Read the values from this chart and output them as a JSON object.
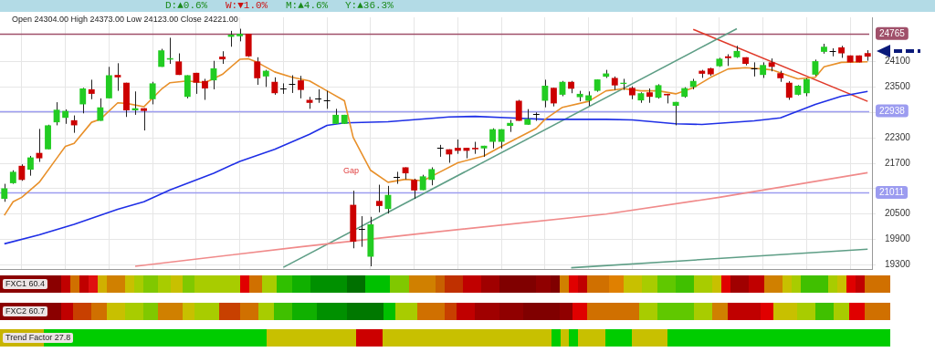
{
  "chart_data": {
    "type": "candlestick",
    "subtitle": "Open 24304.00 High 24373.00 Low 24123.00 Close 24221.00",
    "annotations": [
      "D:▲0.6%",
      "W:▼1.0%",
      "M:▲4.6%",
      "Y:▲36.3%",
      "Gap",
      "FXC1 60.4",
      "FXC2 60.7",
      "Trend Factor 27.8"
    ],
    "categories": [
      null,
      null,
      null,
      null,
      null,
      null,
      null,
      null,
      null,
      null,
      null,
      null,
      null,
      null,
      null,
      null,
      null,
      null,
      null,
      null,
      null,
      null,
      null,
      null,
      null,
      null,
      null,
      null,
      null,
      null,
      null,
      null,
      null,
      null,
      null,
      null,
      null,
      null,
      null,
      null,
      null,
      null,
      null,
      null,
      null,
      null,
      null,
      null,
      null,
      null,
      null,
      null,
      null,
      null,
      null,
      null,
      null,
      null,
      null,
      null,
      null,
      null,
      null,
      null,
      null,
      null,
      null,
      null,
      null,
      null,
      null,
      null,
      null,
      null,
      null,
      null,
      null,
      null,
      null,
      null,
      null,
      null,
      null,
      null,
      null,
      null,
      null,
      null,
      null,
      null,
      null,
      null,
      null,
      null,
      null,
      null,
      null,
      null,
      null,
      null
    ],
    "ohlc": [
      [
        20860,
        21214,
        20789,
        21108
      ],
      [
        21229,
        21533,
        21214,
        21498
      ],
      [
        21640,
        21675,
        21285,
        21307
      ],
      [
        21548,
        21874,
        21406,
        21838
      ],
      [
        21945,
        22512,
        21732,
        21817
      ],
      [
        22030,
        22611,
        22030,
        22597
      ],
      [
        22668,
        23143,
        22597,
        22966
      ],
      [
        22774,
        22973,
        22632,
        22937
      ],
      [
        22717,
        22831,
        22420,
        22597
      ],
      [
        23093,
        23483,
        22880,
        23469
      ],
      [
        23448,
        23675,
        23214,
        23341
      ],
      [
        22703,
        23235,
        22703,
        23022
      ],
      [
        23235,
        23979,
        23235,
        23781
      ],
      [
        23788,
        24065,
        23412,
        23731
      ],
      [
        23604,
        23604,
        22795,
        22951
      ],
      [
        22951,
        23398,
        22845,
        23001
      ],
      [
        23001,
        23001,
        22476,
        22937
      ],
      [
        23214,
        23625,
        23093,
        23589
      ],
      [
        23979,
        24405,
        23979,
        24369
      ],
      [
        24150,
        24667,
        24050,
        24185
      ],
      [
        24107,
        24298,
        23788,
        23788
      ],
      [
        23270,
        23781,
        23235,
        23781
      ],
      [
        23838,
        23838,
        23341,
        23604
      ],
      [
        23646,
        23696,
        23199,
        23469
      ],
      [
        23660,
        24121,
        23448,
        23944
      ],
      [
        24221,
        24348,
        24050,
        24157
      ],
      [
        24689,
        24830,
        24455,
        24739
      ],
      [
        24703,
        24880,
        24582,
        24760
      ],
      [
        24760,
        24760,
        24213,
        24228
      ],
      [
        24107,
        24206,
        23554,
        23710
      ],
      [
        23752,
        23908,
        23504,
        23887
      ],
      [
        23625,
        23731,
        23320,
        23356
      ],
      [
        23469,
        23589,
        23341,
        23469
      ],
      [
        23572,
        23781,
        23362,
        23572
      ],
      [
        23660,
        23767,
        23235,
        23433
      ],
      [
        23199,
        23270,
        22987,
        23128
      ],
      [
        23224,
        23448,
        23128,
        23224
      ],
      [
        23188,
        23412,
        22987,
        23188
      ],
      [
        22632,
        22987,
        22632,
        22845
      ],
      [
        22632,
        22845,
        22632,
        22845
      ],
      [
        20718,
        21051,
        19690,
        19846
      ],
      [
        20143,
        20449,
        19725,
        20143
      ],
      [
        19491,
        20434,
        19264,
        20257
      ],
      [
        20810,
        21193,
        20541,
        20690
      ],
      [
        20619,
        21165,
        20513,
        20952
      ],
      [
        21388,
        21498,
        21214,
        21388
      ],
      [
        21604,
        21604,
        21321,
        21462
      ],
      [
        21307,
        21335,
        20860,
        21058
      ],
      [
        21065,
        21427,
        21065,
        21391
      ],
      [
        21307,
        21604,
        21179,
        21562
      ],
      [
        22062,
        22135,
        21853,
        22062
      ],
      [
        22030,
        22030,
        21711,
        21909
      ],
      [
        22065,
        22263,
        21923,
        21994
      ],
      [
        22065,
        22065,
        21817,
        21994
      ],
      [
        22065,
        22207,
        21923,
        22030
      ],
      [
        22051,
        22114,
        21853,
        22114
      ],
      [
        22207,
        22526,
        22051,
        22505
      ],
      [
        22207,
        22505,
        22051,
        22505
      ],
      [
        22583,
        22724,
        22441,
        22654
      ],
      [
        23178,
        23199,
        22703,
        22703
      ],
      [
        22611,
        22980,
        22611,
        22746
      ],
      [
        22862,
        22902,
        22703,
        22862
      ],
      [
        23178,
        23675,
        23022,
        23533
      ],
      [
        23483,
        23483,
        23044,
        23115
      ],
      [
        23320,
        23646,
        23285,
        23625
      ],
      [
        23625,
        23646,
        23356,
        23462
      ],
      [
        23263,
        23412,
        23164,
        23341
      ],
      [
        23178,
        23398,
        23058,
        23306
      ],
      [
        23412,
        23682,
        23391,
        23682
      ],
      [
        23746,
        23908,
        23717,
        23823
      ],
      [
        23717,
        23752,
        23434,
        23540
      ],
      [
        23575,
        23696,
        23434,
        23604
      ],
      [
        23483,
        23519,
        23214,
        23306
      ],
      [
        23186,
        23377,
        23129,
        23356
      ],
      [
        23377,
        23469,
        23129,
        23271
      ],
      [
        23249,
        23568,
        23228,
        23546
      ],
      [
        23341,
        23341,
        23115,
        23306
      ],
      [
        23058,
        23150,
        22597,
        23150
      ],
      [
        23271,
        23497,
        23249,
        23476
      ],
      [
        23504,
        23696,
        23448,
        23646
      ],
      [
        23887,
        23908,
        23717,
        23816
      ],
      [
        23944,
        23958,
        23767,
        23802
      ],
      [
        23994,
        24192,
        23979,
        24171
      ],
      [
        24228,
        24277,
        24000,
        24185
      ],
      [
        24206,
        24476,
        24192,
        24355
      ],
      [
        24206,
        24206,
        24015,
        24050
      ],
      [
        23932,
        24086,
        23752,
        23932
      ],
      [
        23788,
        24086,
        23717,
        24022
      ],
      [
        24086,
        24178,
        23873,
        23979
      ],
      [
        23830,
        23887,
        23625,
        23710
      ],
      [
        23604,
        23639,
        23199,
        23249
      ],
      [
        23320,
        23547,
        23306,
        23533
      ],
      [
        23356,
        23710,
        23285,
        23689
      ],
      [
        23795,
        24150,
        23767,
        24114
      ],
      [
        24334,
        24525,
        24292,
        24455
      ],
      [
        24358,
        24419,
        24228,
        24358
      ],
      [
        24440,
        24476,
        24192,
        24298
      ],
      [
        24249,
        24249,
        24086,
        24086
      ],
      [
        24249,
        24249,
        24086,
        24086
      ],
      [
        24304,
        24373,
        24123,
        24221
      ]
    ],
    "colors": [
      "#22cc22",
      "#22cc22",
      "#cc0000",
      "#22cc22",
      "#cc0000",
      "#22cc22",
      "#22cc22",
      "#22cc22",
      "#cc0000",
      "#22cc22",
      "#cc0000",
      "#22cc22",
      "#22cc22",
      "#cc0000",
      "#cc0000",
      "#22cc22",
      "#cc0000",
      "#22cc22",
      "#22cc22",
      "#22cc22",
      "#cc0000",
      "#22cc22",
      "#cc0000",
      "#cc0000",
      "#22cc22",
      "#cc0000",
      "#22cc22",
      "#22cc22",
      "#cc0000",
      "#cc0000",
      "#22cc22",
      "#cc0000",
      "#000000",
      "#000000",
      "#cc0000",
      "#cc0000",
      "#000000",
      "#000000",
      "#22cc22",
      "#22cc22",
      "#cc0000",
      "#000000",
      "#22cc22",
      "#cc0000",
      "#22cc22",
      "#000000",
      "#cc0000",
      "#cc0000",
      "#22cc22",
      "#22cc22",
      "#000000",
      "#cc0000",
      "#cc0000",
      "#cc0000",
      "#cc0000",
      "#22cc22",
      "#22cc22",
      "#22cc22",
      "#22cc22",
      "#cc0000",
      "#22cc22",
      "#000000",
      "#22cc22",
      "#cc0000",
      "#22cc22",
      "#cc0000",
      "#22cc22",
      "#22cc22",
      "#22cc22",
      "#22cc22",
      "#cc0000",
      "#22cc22",
      "#cc0000",
      "#22cc22",
      "#cc0000",
      "#22cc22",
      "#cc0000",
      "#22cc22",
      "#22cc22",
      "#22cc22",
      "#cc0000",
      "#cc0000",
      "#22cc22",
      "#cc0000",
      "#22cc22",
      "#cc0000",
      "#000000",
      "#22cc22",
      "#cc0000",
      "#cc0000",
      "#cc0000",
      "#22cc22",
      "#22cc22",
      "#22cc22",
      "#22cc22",
      "#000000",
      "#cc0000",
      "#cc0000",
      "#cc0000",
      "#cc0000"
    ],
    "series": [
      {
        "type": "line",
        "color": "#e8902a",
        "values": [
          20470,
          20789,
          20895,
          null,
          21250,
          null,
          21817,
          22100,
          22171,
          null,
          22668,
          22739,
          null,
          23129,
          23115,
          null,
          23036,
          null,
          23448,
          23604,
          null,
          23646,
          null,
          23604,
          null,
          23802,
          null,
          24157,
          24171,
          24086,
          null,
          23859,
          null,
          23731,
          null,
          23646,
          null,
          23412,
          null,
          23178,
          22313,
          null,
          21533,
          null,
          21250,
          null,
          21321,
          null,
          21285,
          null,
          21498,
          null,
          21711,
          null,
          null,
          21874,
          null,
          22100,
          null,
          null,
          null,
          22526,
          22739,
          null,
          23022,
          null,
          null,
          23164,
          null,
          23412,
          null,
          23462,
          null,
          23412,
          null,
          23412,
          null,
          23341,
          null,
          23483,
          null,
          23731,
          null,
          23929,
          null,
          23958,
          null,
          23929,
          23908,
          null,
          23767,
          23696,
          null,
          23731,
          23979,
          null,
          24086,
          null,
          null,
          24100
        ]
      },
      {
        "type": "line",
        "color": "#1f2fe6",
        "values": [
          19796,
          null,
          null,
          null,
          20009,
          null,
          null,
          null,
          20257,
          null,
          null,
          null,
          null,
          20612,
          null,
          null,
          20789,
          null,
          null,
          21072,
          null,
          null,
          null,
          null,
          21462,
          null,
          null,
          21746,
          null,
          null,
          null,
          22030,
          null,
          null,
          null,
          22384,
          null,
          22597,
          null,
          22654,
          null,
          null,
          null,
          null,
          22682,
          null,
          null,
          null,
          null,
          null,
          null,
          22795,
          null,
          null,
          22809,
          null,
          null,
          null,
          22774,
          null,
          null,
          null,
          22739,
          null,
          null,
          null,
          null,
          null,
          null,
          22739,
          null,
          null,
          22725,
          null,
          null,
          null,
          null,
          22632,
          null,
          null,
          22618,
          null,
          null,
          null,
          null,
          null,
          22703,
          null,
          null,
          22774,
          null,
          null,
          null,
          23093,
          null,
          null,
          23285,
          null,
          null,
          23398
        ]
      },
      {
        "type": "line",
        "color": "#f08a8a",
        "values": [
          null,
          null,
          null,
          null,
          null,
          null,
          null,
          null,
          null,
          null,
          null,
          null,
          null,
          null,
          null,
          19264,
          null,
          null,
          null,
          null,
          null,
          null,
          null,
          null,
          null,
          null,
          null,
          null,
          null,
          null,
          null,
          null,
          null,
          null,
          19726,
          null,
          null,
          null,
          null,
          null,
          null,
          null,
          null,
          null,
          null,
          null,
          null,
          null,
          20044,
          null,
          null,
          null,
          null,
          null,
          null,
          null,
          null,
          null,
          null,
          null,
          null,
          null,
          null,
          null,
          null,
          null,
          null,
          null,
          null,
          20500,
          null,
          null,
          null,
          null,
          null,
          null,
          null,
          null,
          null,
          null,
          null,
          null,
          20895,
          null,
          null,
          null,
          null,
          null,
          null,
          null,
          null,
          null,
          null,
          null,
          null,
          null,
          null,
          null,
          null,
          21477
        ]
      },
      {
        "type": "line",
        "color": "#5e9e86",
        "values": [
          null,
          null,
          null,
          null,
          null,
          null,
          null,
          null,
          null,
          null,
          null,
          null,
          null,
          null,
          null,
          null,
          null,
          null,
          null,
          null,
          null,
          null,
          null,
          null,
          null,
          null,
          null,
          null,
          null,
          null,
          null,
          null,
          19240,
          null,
          null,
          null,
          null,
          null,
          null,
          null,
          null,
          null,
          null,
          null,
          null,
          null,
          null,
          null,
          null,
          null,
          null,
          null,
          null,
          null,
          null,
          null,
          null,
          null,
          null,
          null,
          null,
          null,
          null,
          null,
          null,
          null,
          null,
          null,
          null,
          null,
          null,
          null,
          null,
          null,
          null,
          null,
          null,
          null,
          null,
          null,
          null,
          null,
          null,
          null,
          24880,
          null,
          null,
          null,
          null,
          null,
          null,
          null,
          null,
          null,
          null,
          null,
          null,
          null,
          null,
          null
        ]
      },
      {
        "type": "line",
        "color": "#5e9e86",
        "values": [
          null,
          null,
          null,
          null,
          null,
          null,
          null,
          null,
          null,
          null,
          null,
          null,
          null,
          null,
          null,
          null,
          null,
          null,
          null,
          null,
          null,
          null,
          null,
          null,
          null,
          null,
          null,
          null,
          null,
          null,
          null,
          null,
          null,
          null,
          null,
          null,
          null,
          null,
          null,
          null,
          null,
          null,
          null,
          null,
          null,
          null,
          null,
          null,
          null,
          null,
          null,
          null,
          null,
          null,
          null,
          null,
          null,
          null,
          null,
          null,
          null,
          null,
          null,
          null,
          null,
          19230,
          null,
          null,
          null,
          null,
          null,
          null,
          null,
          null,
          null,
          null,
          null,
          null,
          null,
          null,
          null,
          null,
          null,
          null,
          null,
          null,
          null,
          null,
          null,
          null,
          null,
          null,
          null,
          null,
          null,
          null,
          null,
          null,
          null,
          19668
        ]
      },
      {
        "type": "line",
        "color": "#e03a2a",
        "values": [
          null,
          null,
          null,
          null,
          null,
          null,
          null,
          null,
          null,
          null,
          null,
          null,
          null,
          null,
          null,
          null,
          null,
          null,
          null,
          null,
          null,
          null,
          null,
          null,
          null,
          null,
          null,
          null,
          null,
          null,
          null,
          null,
          null,
          null,
          null,
          null,
          null,
          null,
          null,
          null,
          null,
          null,
          null,
          null,
          null,
          null,
          null,
          null,
          null,
          null,
          null,
          null,
          null,
          null,
          null,
          null,
          null,
          null,
          null,
          null,
          null,
          null,
          null,
          null,
          null,
          null,
          null,
          null,
          null,
          null,
          null,
          null,
          null,
          null,
          null,
          null,
          null,
          null,
          null,
          24866,
          null,
          null,
          null,
          null,
          null,
          null,
          null,
          null,
          null,
          null,
          null,
          null,
          null,
          null,
          null,
          null,
          null,
          null,
          null,
          23164
        ]
      }
    ],
    "ylim": [
      19200,
      25150
    ],
    "yticks": [
      19300,
      19900,
      20500,
      {
        "value": 21100,
        "label": null
      },
      21700,
      22300,
      {
        "value": 22900,
        "label": null
      },
      23500,
      24100
    ],
    "ref_lines": [
      {
        "axis": "y",
        "value": 24765,
        "label": "24765",
        "color": "#a0506a"
      },
      {
        "axis": "y",
        "value": 22938,
        "label": "22938",
        "color": "#9c9cf0"
      },
      {
        "axis": "y",
        "value": 21011,
        "label": "21011",
        "color": "#9c9cf0"
      }
    ],
    "grid": true,
    "tick_labels": "y"
  }
}
